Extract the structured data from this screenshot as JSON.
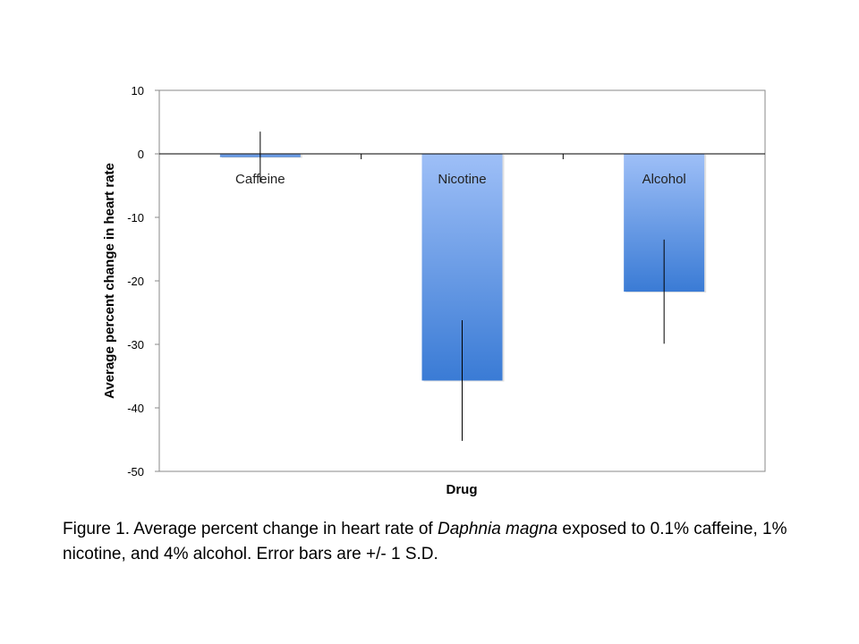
{
  "chart_data": {
    "type": "bar",
    "categories": [
      "Caffeine",
      "Nicotine",
      "Alcohol"
    ],
    "values": [
      -0.5,
      -35.7,
      -21.7
    ],
    "error_sd": [
      4.0,
      9.5,
      8.2
    ],
    "xlabel": "Drug",
    "ylabel": "Average percent change in heart rate",
    "ylim": [
      -50,
      10
    ],
    "yticks": [
      10,
      0,
      -10,
      -20,
      -30,
      -40,
      -50
    ],
    "grid": false,
    "legend": "none",
    "bar_color_top": "#9ebff7",
    "bar_color_bottom": "#3a7bd5"
  },
  "caption": {
    "prefix": "Figure 1. Average percent change in heart rate of ",
    "species": "Daphnia magna",
    "suffix": " exposed to 0.1% caffeine, 1% nicotine, and 4% alcohol.  Error bars are +/- 1 S.D."
  }
}
